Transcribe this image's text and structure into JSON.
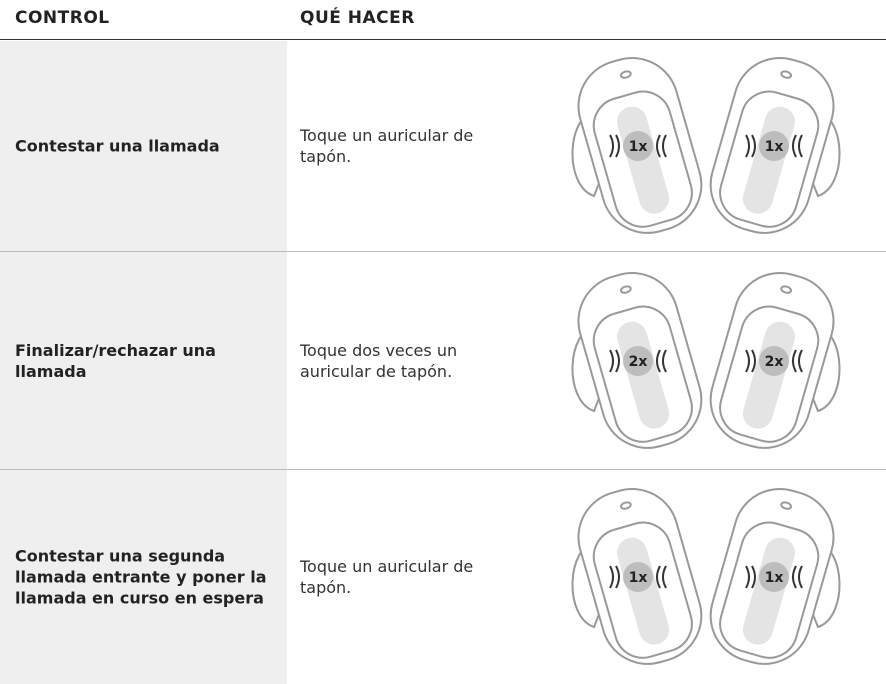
{
  "header": {
    "control": "CONTROL",
    "action": "QUÉ HACER"
  },
  "rows": [
    {
      "control": "Contestar una llamada",
      "action": "Toque un auricular de tapón.",
      "badges": [
        "1x",
        "1x"
      ]
    },
    {
      "control": "Finalizar/rechazar una llamada",
      "action": "Toque dos veces un auricular de tapón.",
      "badges": [
        "2x",
        "2x"
      ]
    },
    {
      "control": "Contestar una segunda llamada entrante y poner la llamada en curso en espera",
      "action": "Toque un auricular de tapón.",
      "badges": [
        "1x",
        "1x"
      ]
    }
  ]
}
